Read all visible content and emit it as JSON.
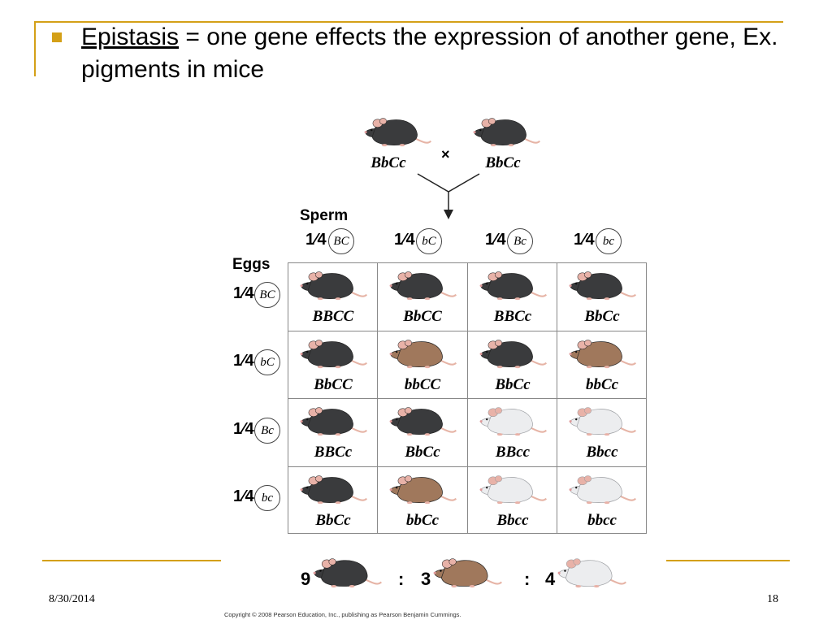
{
  "title": {
    "term": "Epistasis",
    "definition": " = one gene effects the expression of another gene, Ex. pigments in mice"
  },
  "figure": {
    "parents": [
      "BbCc",
      "BbCc"
    ],
    "cross_symbol": "×",
    "sperm_label": "Sperm",
    "eggs_label": "Eggs",
    "fraction": "1⁄4",
    "sperm_alleles": [
      "BC",
      "bC",
      "Bc",
      "bc"
    ],
    "egg_alleles": [
      "BC",
      "bC",
      "Bc",
      "bc"
    ],
    "rows": [
      [
        {
          "genotype": "BBCC",
          "color": "black"
        },
        {
          "genotype": "BbCC",
          "color": "black"
        },
        {
          "genotype": "BBCc",
          "color": "black"
        },
        {
          "genotype": "BbCc",
          "color": "black"
        }
      ],
      [
        {
          "genotype": "BbCC",
          "color": "black"
        },
        {
          "genotype": "bbCC",
          "color": "brown"
        },
        {
          "genotype": "BbCc",
          "color": "black"
        },
        {
          "genotype": "bbCc",
          "color": "brown"
        }
      ],
      [
        {
          "genotype": "BBCc",
          "color": "black"
        },
        {
          "genotype": "BbCc",
          "color": "black"
        },
        {
          "genotype": "BBcc",
          "color": "white"
        },
        {
          "genotype": "Bbcc",
          "color": "white"
        }
      ],
      [
        {
          "genotype": "BbCc",
          "color": "black"
        },
        {
          "genotype": "bbCc",
          "color": "brown"
        },
        {
          "genotype": "Bbcc",
          "color": "white"
        },
        {
          "genotype": "bbcc",
          "color": "white"
        }
      ]
    ],
    "ratio": {
      "black": "9",
      "brown": "3",
      "white": "4",
      "separator": ":"
    },
    "mouse_colors": {
      "black": "#3a3b3d",
      "brown": "#a0785c",
      "white": "#ecedef",
      "ear": "#e8b2a8",
      "tail": "#e6b4a6"
    }
  },
  "footer": {
    "date": "8/30/2014",
    "page": "18",
    "copyright": "Copyright © 2008 Pearson Education, Inc., publishing as Pearson Benjamin Cummings."
  }
}
